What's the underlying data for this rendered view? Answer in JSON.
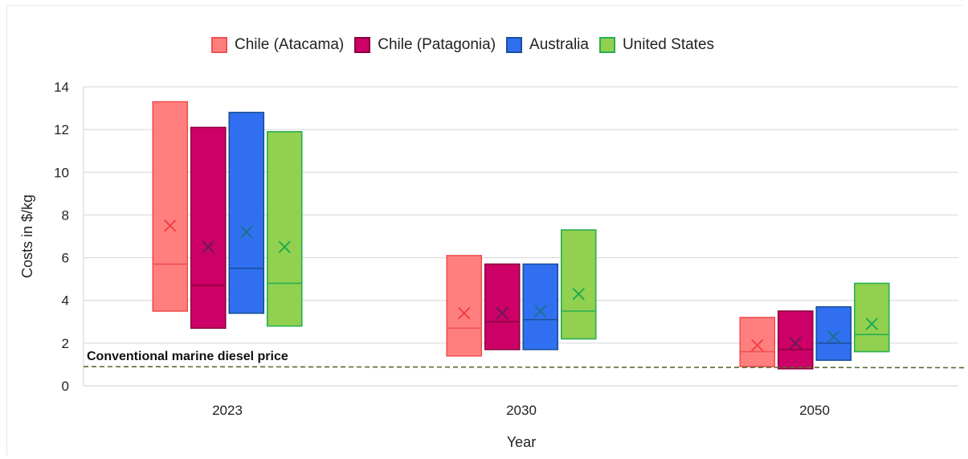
{
  "chart_data": {
    "type": "box",
    "title": "",
    "xlabel": "Year",
    "ylabel": "Costs in $/kg",
    "ylim": [
      0,
      14
    ],
    "yticks": [
      0,
      2,
      4,
      6,
      8,
      10,
      12,
      14
    ],
    "grid": true,
    "legend_position": "top",
    "categories": [
      "2023",
      "2030",
      "2050"
    ],
    "series": [
      {
        "name": "Chile (Atacama)",
        "fill": "#ff7f7f",
        "stroke": "#f05050",
        "marker": "#f03a3a",
        "boxes": [
          {
            "min": 3.5,
            "median": 5.7,
            "mean": 7.5,
            "max": 13.3
          },
          {
            "min": 1.4,
            "median": 2.7,
            "mean": 3.4,
            "max": 6.1
          },
          {
            "min": 0.9,
            "median": 1.6,
            "mean": 1.9,
            "max": 3.2
          }
        ]
      },
      {
        "name": "Chile (Patagonia)",
        "fill": "#cc0066",
        "stroke": "#8a0040",
        "marker": "#5a2050",
        "boxes": [
          {
            "min": 2.7,
            "median": 4.7,
            "mean": 6.5,
            "max": 12.1
          },
          {
            "min": 1.7,
            "median": 3.0,
            "mean": 3.4,
            "max": 5.7
          },
          {
            "min": 0.8,
            "median": 1.7,
            "mean": 2.0,
            "max": 3.5
          }
        ]
      },
      {
        "name": "Australia",
        "fill": "#3070f0",
        "stroke": "#1a4f9c",
        "marker": "#1d6f8a",
        "boxes": [
          {
            "min": 3.4,
            "median": 5.5,
            "mean": 7.2,
            "max": 12.8
          },
          {
            "min": 1.7,
            "median": 3.1,
            "mean": 3.5,
            "max": 5.7
          },
          {
            "min": 1.2,
            "median": 2.0,
            "mean": 2.3,
            "max": 3.7
          }
        ]
      },
      {
        "name": "United States",
        "fill": "#92d050",
        "stroke": "#27b050",
        "marker": "#1aa84c",
        "boxes": [
          {
            "min": 2.8,
            "median": 4.8,
            "mean": 6.5,
            "max": 11.9
          },
          {
            "min": 2.2,
            "median": 3.5,
            "mean": 4.3,
            "max": 7.3
          },
          {
            "min": 1.6,
            "median": 2.4,
            "mean": 2.9,
            "max": 4.8
          }
        ]
      }
    ],
    "reference_line": {
      "label": "Conventional marine diesel price",
      "value_start": 0.9,
      "value_end": 0.85,
      "color": "#556b2f",
      "style": "dashed"
    }
  }
}
